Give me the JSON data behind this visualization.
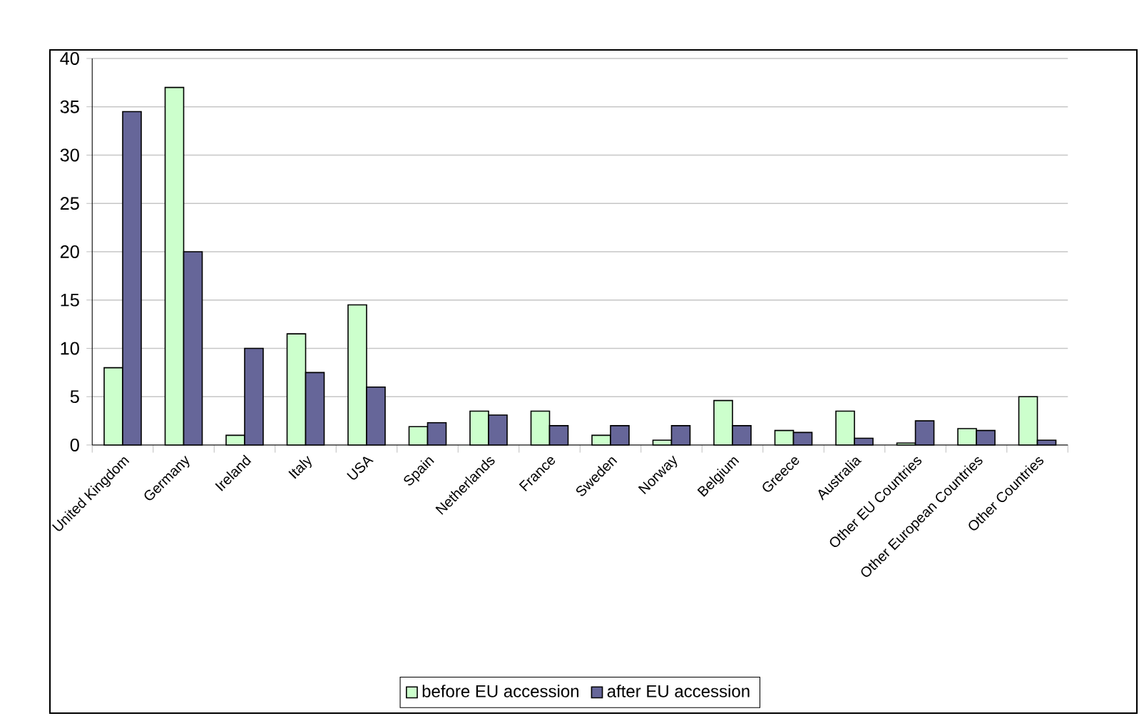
{
  "chart_data": {
    "type": "bar",
    "categories": [
      "United Kingdom",
      "Germany",
      "Ireland",
      "Italy",
      "USA",
      "Spain",
      "Netherlands",
      "France",
      "Sweden",
      "Norway",
      "Belgium",
      "Greece",
      "Australia",
      "Other EU Countries",
      "Other European Countries",
      "Other Countries"
    ],
    "series": [
      {
        "name": "before EU accession",
        "color": "#ccffcc",
        "values": [
          8,
          37,
          1,
          11.5,
          14.5,
          1.9,
          3.5,
          3.5,
          1,
          0.5,
          4.6,
          1.5,
          3.5,
          0.2,
          1.7,
          5
        ]
      },
      {
        "name": "after EU accession",
        "color": "#666699",
        "values": [
          34.5,
          20,
          10,
          7.5,
          6,
          2.3,
          3.1,
          2,
          2,
          2,
          2,
          1.3,
          0.7,
          2.5,
          1.5,
          0.5
        ]
      }
    ],
    "ylim": [
      0,
      40
    ],
    "yticks": [
      0,
      5,
      10,
      15,
      20,
      25,
      30,
      35,
      40
    ],
    "grid": "y",
    "legend": "bottom"
  }
}
